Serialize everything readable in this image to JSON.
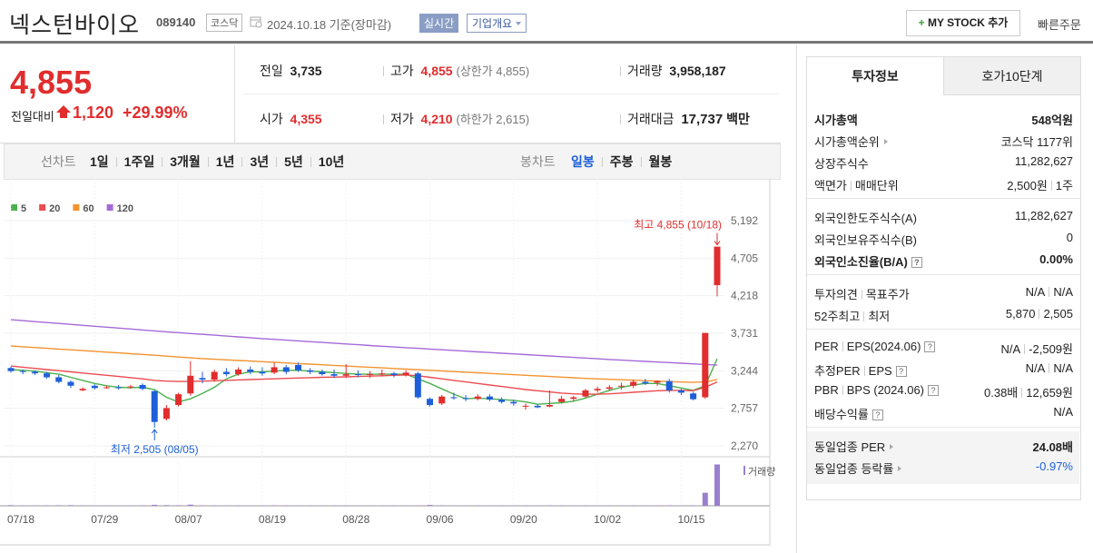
{
  "header": {
    "name": "넥스턴바이오",
    "code": "089140",
    "market": "코스닥",
    "date": "2024.10.18 기준(장마감)",
    "realtime": "실시간",
    "company_info": "기업개요",
    "mystock": "MY STOCK 추가",
    "quick_order": "빠른주문"
  },
  "quote": {
    "price": "4,855",
    "change_label": "전일대비",
    "change": "1,120",
    "change_rate": "+29.99%",
    "fields": [
      {
        "label": "전일",
        "value": "3,735"
      },
      {
        "label": "고가",
        "value": "4,855",
        "note": "(상한가 4,855)"
      },
      {
        "label": "거래량",
        "value": "3,958,187"
      },
      {
        "label": "시가",
        "value": "4,355"
      },
      {
        "label": "저가",
        "value": "4,210",
        "note": "(하한가 2,615)"
      },
      {
        "label": "거래대금",
        "value": "17,737",
        "unit": "백만"
      }
    ]
  },
  "periods": {
    "line_chart": "선차트",
    "line_options": [
      "1일",
      "1주일",
      "3개월",
      "1년",
      "3년",
      "5년",
      "10년"
    ],
    "candle_chart": "봉차트",
    "candle_options": [
      "일봉",
      "주봉",
      "월봉"
    ]
  },
  "chart_data": {
    "type": "candlestick",
    "categories": [
      "07/18",
      null,
      null,
      null,
      null,
      null,
      null,
      "07/29",
      null,
      null,
      null,
      null,
      null,
      null,
      "08/07",
      null,
      null,
      null,
      null,
      null,
      null,
      "08/19",
      null,
      null,
      null,
      null,
      null,
      null,
      "08/28",
      null,
      null,
      null,
      null,
      null,
      null,
      "09/06",
      null,
      null,
      null,
      null,
      null,
      null,
      "09/20",
      null,
      null,
      null,
      null,
      null,
      null,
      "10/02",
      null,
      null,
      null,
      null,
      null,
      null,
      "10/15",
      null,
      null,
      null
    ],
    "ohlc": {
      "open": [
        3280,
        3240,
        3230,
        3210,
        3160,
        3100,
        2990,
        3050,
        3030,
        3030,
        3030,
        3060,
        2980,
        2620,
        2800,
        2950,
        3150,
        3130,
        3230,
        3200,
        3260,
        3230,
        3220,
        3290,
        3320,
        3250,
        3230,
        3200,
        3180,
        3200,
        3190,
        3200,
        3210,
        3190,
        3210,
        2880,
        2820,
        2900,
        2890,
        2880,
        2910,
        2870,
        2840,
        2780,
        2790,
        2780,
        2840,
        2880,
        2910,
        2990,
        3010,
        3040,
        3050,
        3100,
        3090,
        3110,
        2990,
        2950,
        2900,
        4355
      ],
      "high": [
        3300,
        3260,
        3250,
        3230,
        3190,
        3120,
        3030,
        3070,
        3050,
        3060,
        3060,
        3080,
        2990,
        2800,
        2960,
        3370,
        3230,
        3260,
        3280,
        3290,
        3300,
        3290,
        3350,
        3320,
        3350,
        3280,
        3260,
        3260,
        3330,
        3250,
        3240,
        3260,
        3230,
        3250,
        3230,
        2900,
        2930,
        2960,
        2930,
        2940,
        2940,
        2900,
        2870,
        2820,
        2810,
        2990,
        2920,
        2920,
        3010,
        3040,
        3060,
        3090,
        3130,
        3140,
        3120,
        3140,
        3010,
        2970,
        3735,
        4855
      ],
      "low": [
        3220,
        3200,
        3190,
        3140,
        3080,
        3020,
        2980,
        3000,
        3010,
        3000,
        3010,
        2990,
        2505,
        2600,
        2780,
        2920,
        3080,
        3100,
        3170,
        3180,
        3200,
        3180,
        3200,
        3200,
        3230,
        3200,
        3180,
        3150,
        3150,
        3160,
        3150,
        3170,
        3160,
        3170,
        2880,
        2780,
        2800,
        2870,
        2850,
        2860,
        2850,
        2820,
        2790,
        2740,
        2760,
        2770,
        2820,
        2850,
        2890,
        2960,
        2980,
        3000,
        3020,
        3060,
        3050,
        2960,
        2930,
        2860,
        2880,
        4210
      ],
      "close": [
        3240,
        3230,
        3210,
        3160,
        3100,
        3050,
        3010,
        3020,
        3030,
        3020,
        3040,
        3010,
        2580,
        2760,
        2940,
        3180,
        3130,
        3230,
        3200,
        3260,
        3230,
        3210,
        3290,
        3230,
        3250,
        3230,
        3200,
        3180,
        3200,
        3190,
        3200,
        3210,
        3190,
        3220,
        2900,
        2800,
        2910,
        2890,
        2880,
        2910,
        2870,
        2840,
        2820,
        2790,
        2770,
        2800,
        2880,
        2900,
        2990,
        3010,
        3030,
        3050,
        3100,
        3080,
        3110,
        2990,
        2960,
        2875,
        3735,
        4855
      ]
    },
    "up_color": "#e12d2d",
    "down_color": "#1e5fd9",
    "moving_averages": [
      {
        "name": "5",
        "color": "#4cb04f",
        "values": [
          3260,
          3250,
          3240,
          3220,
          3200,
          3160,
          3120,
          3080,
          3050,
          3030,
          3025,
          3030,
          3000,
          2900,
          2840,
          2880,
          2950,
          3030,
          3140,
          3200,
          3230,
          3230,
          3240,
          3250,
          3250,
          3240,
          3230,
          3220,
          3210,
          3200,
          3200,
          3200,
          3200,
          3200,
          3140,
          3080,
          3010,
          2940,
          2880,
          2890,
          2880,
          2870,
          2860,
          2840,
          2810,
          2820,
          2830,
          2850,
          2890,
          2940,
          2990,
          3030,
          3060,
          3080,
          3080,
          3050,
          3020,
          2990,
          3050,
          3400
        ]
      },
      {
        "name": "20",
        "color": "#ea4c50",
        "values": [
          3306,
          3290,
          3275,
          3260,
          3245,
          3230,
          3215,
          3200,
          3185,
          3170,
          3155,
          3140,
          3120,
          3110,
          3105,
          3105,
          3110,
          3115,
          3120,
          3125,
          3130,
          3135,
          3140,
          3145,
          3150,
          3155,
          3160,
          3162,
          3165,
          3170,
          3175,
          3180,
          3185,
          3190,
          3180,
          3160,
          3140,
          3120,
          3100,
          3080,
          3060,
          3040,
          3020,
          3000,
          2985,
          2970,
          2955,
          2945,
          2940,
          2940,
          2945,
          2955,
          2965,
          2975,
          2985,
          2990,
          2990,
          2985,
          3030,
          3100
        ]
      },
      {
        "name": "60",
        "color": "#f39330",
        "values": [
          3566,
          3556,
          3546,
          3536,
          3526,
          3516,
          3506,
          3496,
          3486,
          3476,
          3466,
          3456,
          3446,
          3434,
          3422,
          3412,
          3402,
          3394,
          3386,
          3378,
          3370,
          3362,
          3354,
          3346,
          3338,
          3330,
          3322,
          3314,
          3306,
          3298,
          3290,
          3282,
          3274,
          3266,
          3258,
          3250,
          3242,
          3234,
          3226,
          3218,
          3210,
          3202,
          3194,
          3186,
          3178,
          3170,
          3162,
          3154,
          3146,
          3140,
          3134,
          3128,
          3122,
          3116,
          3110,
          3104,
          3098,
          3094,
          3100,
          3130
        ]
      },
      {
        "name": "120",
        "color": "#a56ad8",
        "values": [
          3907,
          3895,
          3882,
          3870,
          3858,
          3846,
          3834,
          3822,
          3810,
          3798,
          3786,
          3774,
          3762,
          3750,
          3739,
          3728,
          3717,
          3706,
          3695,
          3684,
          3673,
          3662,
          3652,
          3642,
          3632,
          3622,
          3612,
          3602,
          3592,
          3582,
          3572,
          3562,
          3553,
          3544,
          3535,
          3526,
          3517,
          3508,
          3499,
          3490,
          3481,
          3472,
          3463,
          3454,
          3445,
          3436,
          3427,
          3418,
          3409,
          3400,
          3391,
          3382,
          3374,
          3366,
          3358,
          3350,
          3342,
          3334,
          3326,
          3318
        ]
      }
    ],
    "volume": {
      "name": "거래량",
      "color": "#9b7fcf",
      "values": [
        60000,
        40000,
        35000,
        45000,
        50000,
        55000,
        40000,
        35000,
        30000,
        30000,
        35000,
        40000,
        95000,
        60000,
        50000,
        110000,
        45000,
        40000,
        35000,
        40000,
        30000,
        35000,
        45000,
        40000,
        35000,
        30000,
        30000,
        30000,
        40000,
        30000,
        25000,
        30000,
        30000,
        30000,
        35000,
        80000,
        45000,
        35000,
        30000,
        30000,
        30000,
        30000,
        35000,
        40000,
        30000,
        45000,
        40000,
        35000,
        40000,
        35000,
        30000,
        30000,
        40000,
        30000,
        30000,
        45000,
        35000,
        40000,
        1250000,
        3958187
      ]
    },
    "vlim": [
      0,
      4000000
    ],
    "ylim": [
      2270,
      5192
    ],
    "yticks": [
      {
        "value": 2270,
        "label": "2,270"
      },
      {
        "value": 2757,
        "label": "2,757"
      },
      {
        "value": 3244,
        "label": "3,244"
      },
      {
        "value": 3731,
        "label": "3,731"
      },
      {
        "value": 4218,
        "label": "4,218"
      },
      {
        "value": 4705,
        "label": "4,705"
      },
      {
        "value": 5192,
        "label": "5,192"
      }
    ],
    "grid": true,
    "annotations": {
      "high": "최고 4,855 (10/18)",
      "low": "최저 2,505 (08/05)"
    }
  },
  "info_panel": {
    "tabs": [
      "투자정보",
      "호가10단계"
    ],
    "help_icon": "?",
    "sections": [
      {
        "rows": [
          {
            "label": [
              "시가총액"
            ],
            "value": [
              "548억원"
            ],
            "bold": true
          },
          {
            "label": [
              "시가총액순위"
            ],
            "value": [
              "코스닥 1177위"
            ],
            "arrow": true
          },
          {
            "label": [
              "상장주식수"
            ],
            "value": [
              "11,282,627"
            ]
          },
          {
            "label": [
              "액면가",
              "매매단위"
            ],
            "value": [
              "2,500원",
              "1주"
            ]
          }
        ]
      },
      {
        "rows": [
          {
            "label": [
              "외국인한도주식수(A)"
            ],
            "value": [
              "11,282,627"
            ]
          },
          {
            "label": [
              "외국인보유주식수(B)"
            ],
            "value": [
              "0"
            ]
          },
          {
            "label": [
              "외국인소진율(B/A)"
            ],
            "value": [
              "0.00%"
            ],
            "bold": true,
            "help": true
          }
        ]
      },
      {
        "rows": [
          {
            "label": [
              "투자의견",
              "목표주가"
            ],
            "value": [
              "N/A",
              "N/A"
            ]
          },
          {
            "label": [
              "52주최고",
              "최저"
            ],
            "value": [
              "5,870",
              "2,505"
            ]
          }
        ]
      },
      {
        "rows": [
          {
            "label": [
              "PER",
              "EPS(2024.06)"
            ],
            "value": [
              "N/A",
              "-2,509원"
            ],
            "help": true
          },
          {
            "label": [
              "추정PER",
              "EPS"
            ],
            "value": [
              "N/A",
              "N/A"
            ],
            "help": true
          },
          {
            "label": [
              "PBR",
              "BPS (2024.06)"
            ],
            "value": [
              "0.38배",
              "12,659원"
            ],
            "help": true
          },
          {
            "label": [
              "배당수익률"
            ],
            "value": [
              "N/A"
            ],
            "help": true
          }
        ]
      },
      {
        "shaded": true,
        "rows": [
          {
            "label": [
              "동일업종 PER"
            ],
            "value": [
              "24.08배"
            ],
            "arrow": true,
            "value_bold": true
          },
          {
            "label": [
              "동일업종 등락률"
            ],
            "value": [
              "-0.97%"
            ],
            "arrow": true,
            "value_color": "#1e5fd9"
          }
        ]
      }
    ]
  }
}
